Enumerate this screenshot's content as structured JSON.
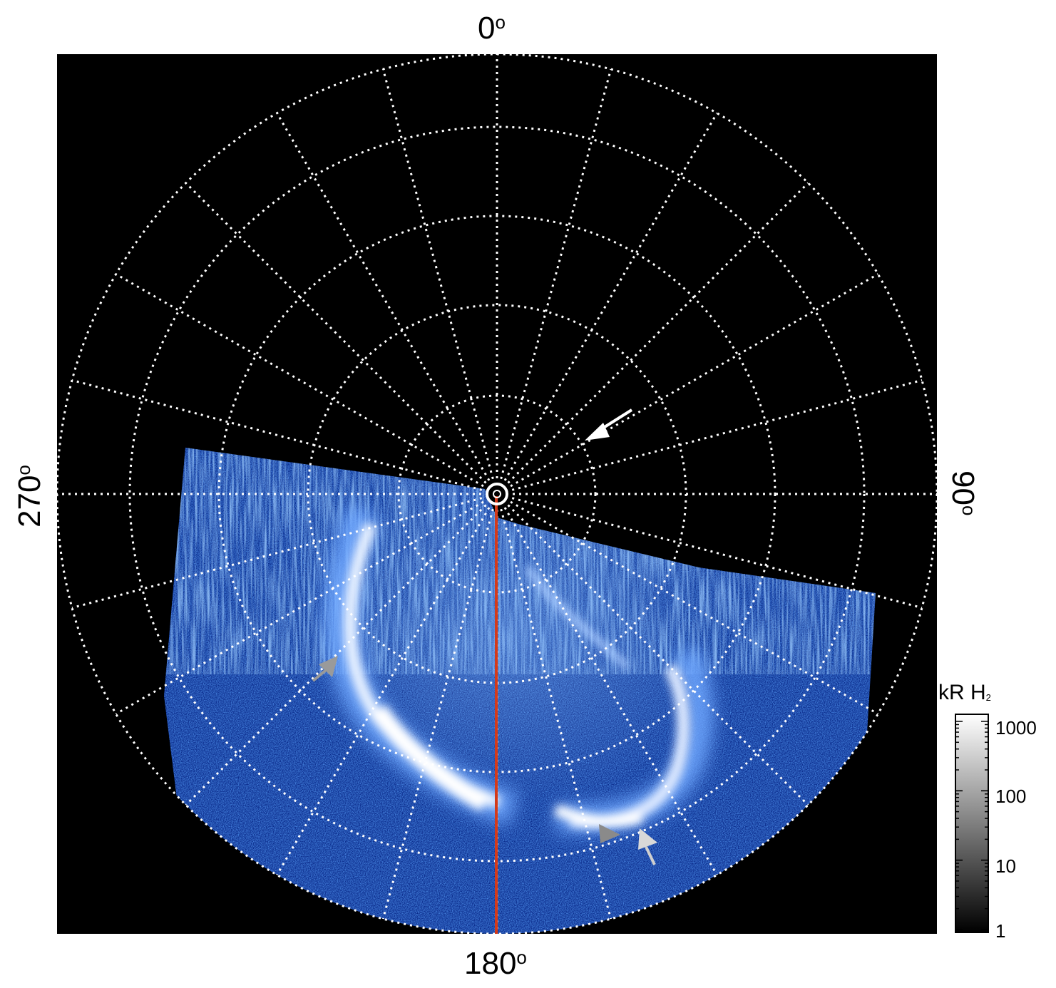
{
  "axis_labels": {
    "top": "0",
    "bottom": "180",
    "left": "270",
    "right": "90",
    "degree_mark": "o"
  },
  "colorbar": {
    "title_main": "kR H",
    "title_sub": "2",
    "ticks": [
      "1000",
      "100",
      "10",
      "1"
    ]
  },
  "colors": {
    "background": "#000000",
    "aurora_dim": "#1e4fcf",
    "aurora_mid": "#4f8fe8",
    "aurora_bright": "#ffffff",
    "grid": "#ffffff",
    "meridian_line": "#d43a1a",
    "arrow_white": "#ffffff",
    "arrow_gray": "#9a9a9a"
  },
  "icons": [
    "white-arrow-icon",
    "gray-arrow-icon"
  ]
}
